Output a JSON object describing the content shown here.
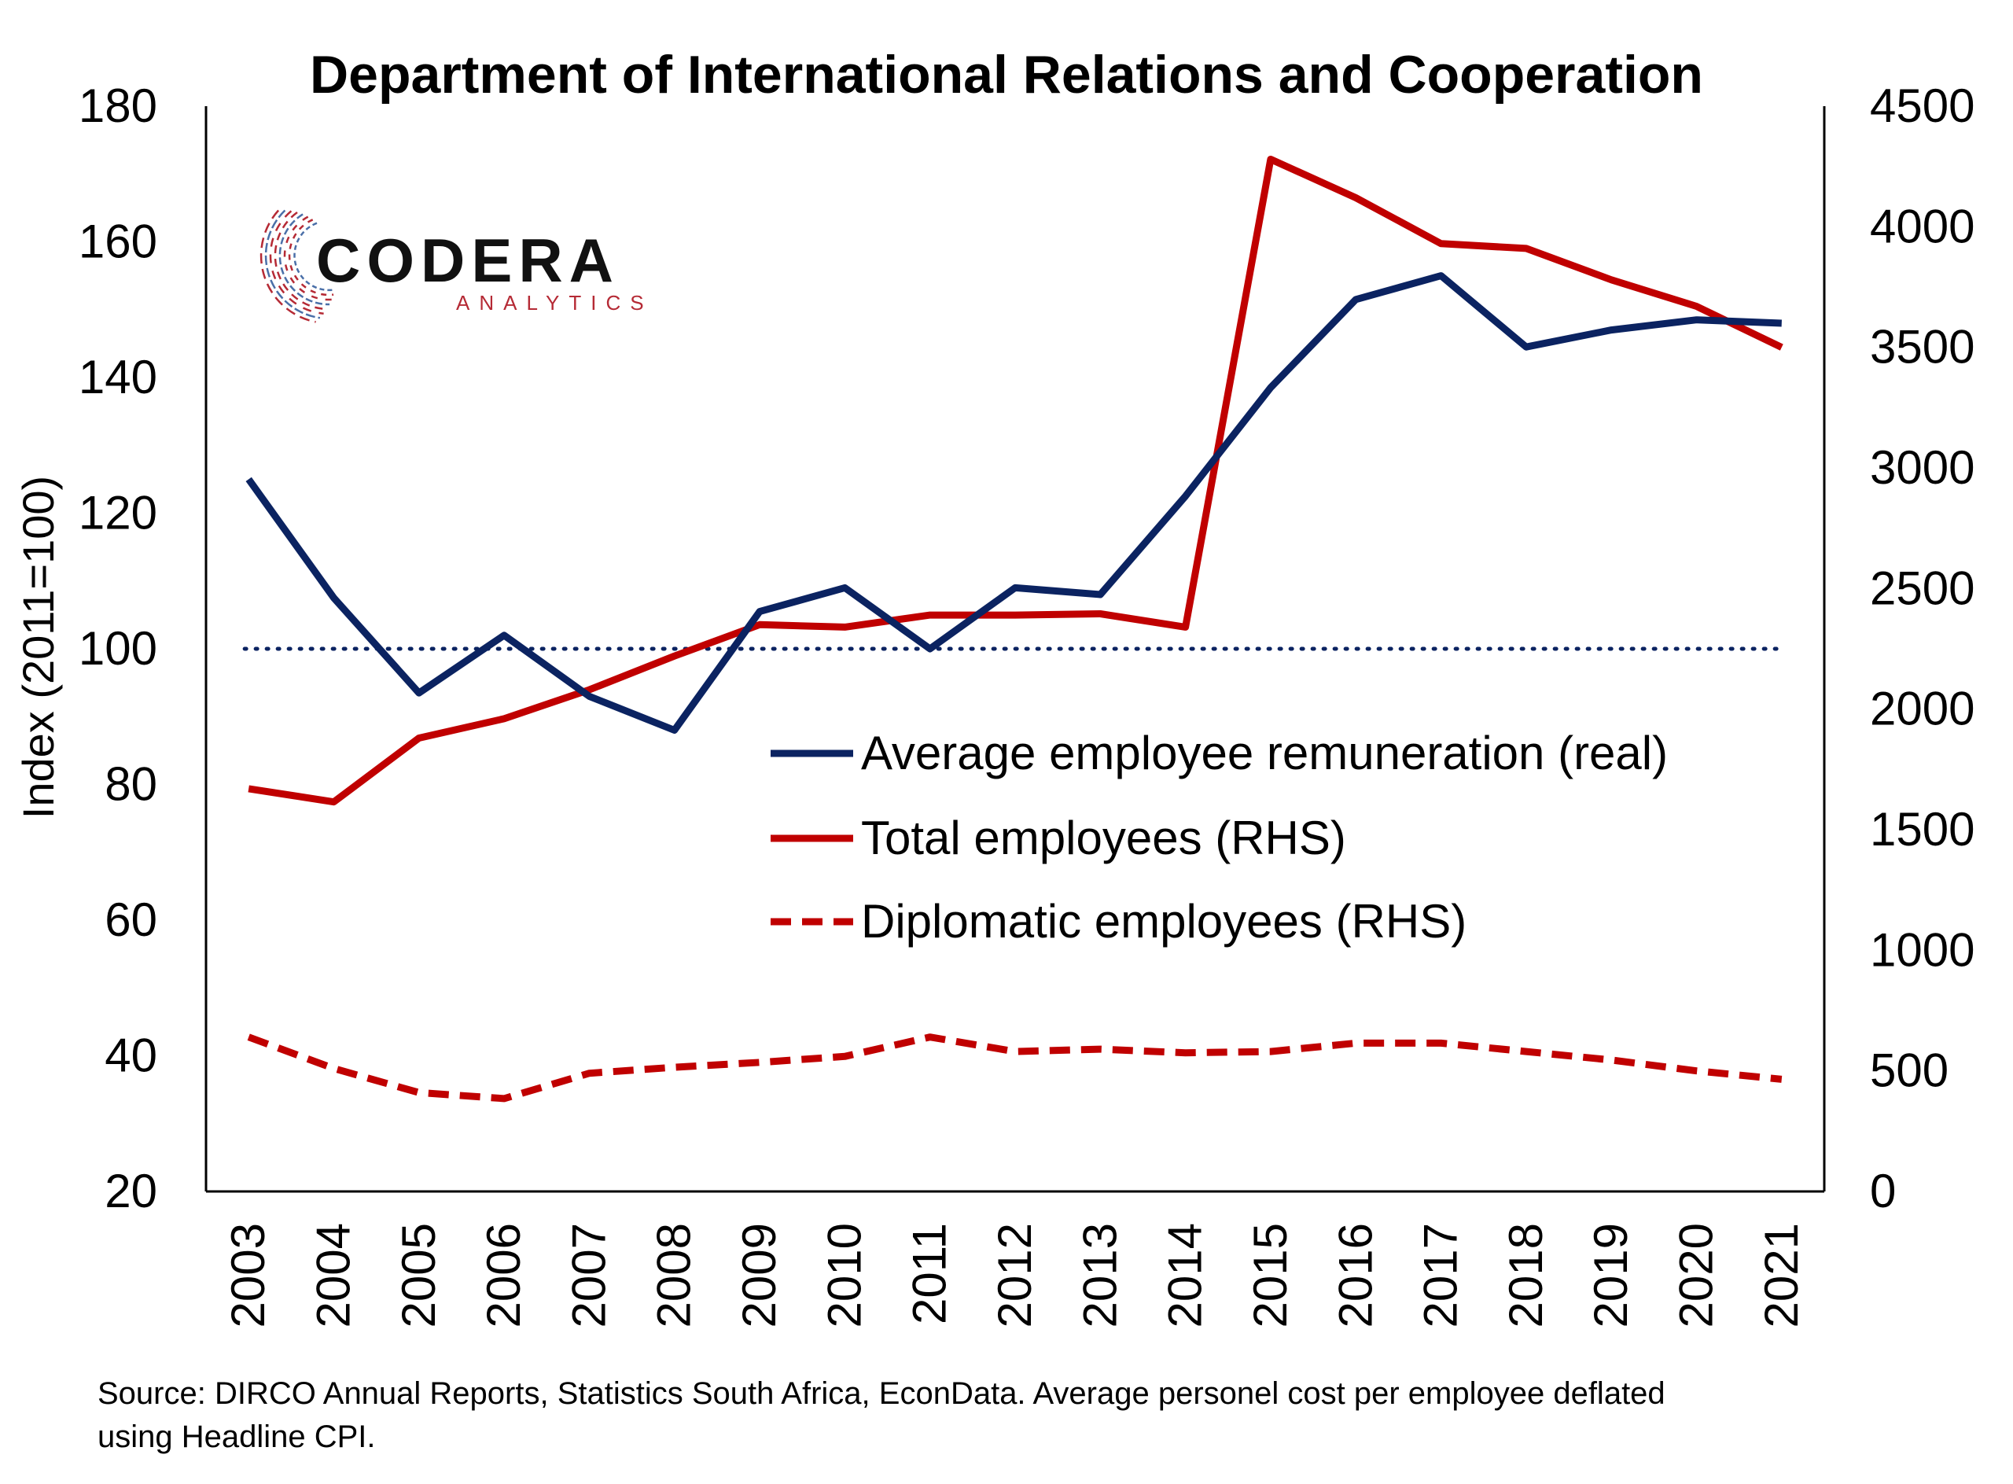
{
  "colors": {
    "navy": "#0b2361",
    "red": "#c00000",
    "logo_red": "#b52a35",
    "logo_blue": "#4a6fa8"
  },
  "logo": {
    "main": "CODERA",
    "sub": "ANALYTICS"
  },
  "source": {
    "line1": "Source: DIRCO Annual Reports, Statistics South Africa, EconData. Average personel cost per employee deflated",
    "line2": "using Headline CPI."
  },
  "chart_data": {
    "type": "line",
    "title": "Department of International Relations and Cooperation",
    "ylabel": "Index (2011=100)",
    "y2label": "",
    "xlabel": "",
    "categories": [
      "2003",
      "2004",
      "2005",
      "2006",
      "2007",
      "2008",
      "2009",
      "2010",
      "2011",
      "2012",
      "2013",
      "2014",
      "2015",
      "2016",
      "2017",
      "2018",
      "2019",
      "2020",
      "2021"
    ],
    "ylim": [
      20,
      180
    ],
    "yticks": [
      20,
      40,
      60,
      80,
      100,
      120,
      140,
      160,
      180
    ],
    "y2lim": [
      0,
      4500
    ],
    "y2ticks": [
      0,
      500,
      1000,
      1500,
      2000,
      2500,
      3000,
      3500,
      4000,
      4500
    ],
    "reference_line": {
      "axis": "left",
      "value": 100,
      "style": "dotted"
    },
    "grid": false,
    "legend_position": "center-right",
    "series": [
      {
        "name": "Average employee remuneration (real)",
        "axis": "left",
        "style": "solid",
        "color": "#0b2361",
        "values": [
          125,
          107.5,
          93.5,
          102,
          93,
          88,
          105.5,
          109,
          100,
          109,
          108,
          122.5,
          138.5,
          151.5,
          155,
          144.5,
          147,
          148.5,
          148
        ]
      },
      {
        "name": "Total employees (RHS)",
        "axis": "right",
        "style": "solid",
        "color": "#c00000",
        "values": [
          1670,
          1615,
          1880,
          1960,
          2080,
          2220,
          2350,
          2340,
          2390,
          2390,
          2395,
          2340,
          4280,
          4120,
          3930,
          3910,
          3780,
          3670,
          3500
        ]
      },
      {
        "name": "Diplomatic employees (RHS)",
        "axis": "right",
        "style": "dashed",
        "color": "#c00000",
        "values": [
          640,
          510,
          410,
          385,
          490,
          515,
          535,
          560,
          640,
          580,
          590,
          575,
          580,
          615,
          615,
          580,
          545,
          500,
          465
        ]
      }
    ]
  }
}
